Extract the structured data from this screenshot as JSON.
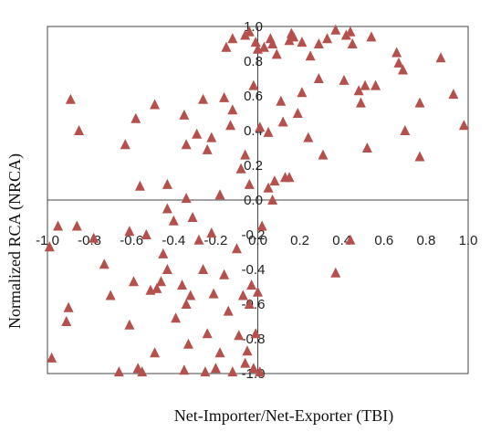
{
  "chart_data": {
    "type": "scatter",
    "title": "",
    "xlabel": "Net-Importer/Net-Exporter (TBI)",
    "ylabel": "Normalized RCA  (NRCA)",
    "xlim": [
      -1.0,
      1.0
    ],
    "ylim": [
      -1.0,
      1.0
    ],
    "x_ticks": [
      "-1.0",
      "-0.8",
      "-0.6",
      "-0.4",
      "-0.2",
      "0.0",
      "0.2",
      "0.4",
      "0.6",
      "0.8",
      "1.0"
    ],
    "y_ticks": [
      "1.0",
      "0.8",
      "0.6",
      "0.4",
      "0.2",
      "0.0",
      "-0.2",
      "-0.4",
      "-0.6",
      "-0.8",
      "-1.0"
    ],
    "grid": false,
    "marker": "triangle",
    "colors": {
      "marker": "#b5514c",
      "axis": "#444444"
    },
    "points": [
      {
        "x": -0.89,
        "y": 0.58
      },
      {
        "x": -0.85,
        "y": 0.4
      },
      {
        "x": -0.63,
        "y": 0.32
      },
      {
        "x": -0.58,
        "y": 0.47
      },
      {
        "x": -0.56,
        "y": 0.08
      },
      {
        "x": -0.49,
        "y": 0.55
      },
      {
        "x": -0.43,
        "y": 0.09
      },
      {
        "x": -0.43,
        "y": -0.05
      },
      {
        "x": -0.35,
        "y": 0.49
      },
      {
        "x": -0.34,
        "y": 0.32
      },
      {
        "x": -0.34,
        "y": 0.01
      },
      {
        "x": -0.29,
        "y": 0.38
      },
      {
        "x": -0.26,
        "y": 0.58
      },
      {
        "x": -0.24,
        "y": 0.29
      },
      {
        "x": -0.22,
        "y": 0.36
      },
      {
        "x": -0.18,
        "y": 0.03
      },
      {
        "x": -0.16,
        "y": 0.59
      },
      {
        "x": -0.13,
        "y": 0.43
      },
      {
        "x": -0.12,
        "y": 0.52
      },
      {
        "x": -0.08,
        "y": 0.18
      },
      {
        "x": -0.06,
        "y": 0.26
      },
      {
        "x": -0.04,
        "y": 0.09
      },
      {
        "x": -0.02,
        "y": 0.66
      },
      {
        "x": -0.15,
        "y": 0.88
      },
      {
        "x": -0.12,
        "y": 0.93
      },
      {
        "x": -0.06,
        "y": 0.95
      },
      {
        "x": -0.04,
        "y": 0.97
      },
      {
        "x": -0.01,
        "y": 0.91
      },
      {
        "x": 0.0,
        "y": 0.87
      },
      {
        "x": 0.03,
        "y": 0.88
      },
      {
        "x": 0.06,
        "y": 0.93
      },
      {
        "x": 0.07,
        "y": 0.9
      },
      {
        "x": 0.09,
        "y": 0.84
      },
      {
        "x": 0.15,
        "y": 0.92
      },
      {
        "x": 0.16,
        "y": 0.96
      },
      {
        "x": 0.17,
        "y": 0.94
      },
      {
        "x": 0.21,
        "y": 0.91
      },
      {
        "x": 0.25,
        "y": 0.83
      },
      {
        "x": 0.29,
        "y": 0.9
      },
      {
        "x": 0.33,
        "y": 0.93
      },
      {
        "x": 0.37,
        "y": 0.98
      },
      {
        "x": 0.42,
        "y": 0.95
      },
      {
        "x": 0.44,
        "y": 0.97
      },
      {
        "x": 0.45,
        "y": 0.9
      },
      {
        "x": 0.54,
        "y": 0.94
      },
      {
        "x": 0.01,
        "y": 0.42
      },
      {
        "x": 0.05,
        "y": 0.39
      },
      {
        "x": 0.11,
        "y": 0.57
      },
      {
        "x": 0.12,
        "y": 0.45
      },
      {
        "x": 0.19,
        "y": 0.5
      },
      {
        "x": 0.21,
        "y": 0.62
      },
      {
        "x": 0.24,
        "y": 0.36
      },
      {
        "x": 0.29,
        "y": 0.7
      },
      {
        "x": 0.31,
        "y": 0.26
      },
      {
        "x": 0.41,
        "y": 0.69
      },
      {
        "x": 0.48,
        "y": 0.63
      },
      {
        "x": 0.49,
        "y": 0.56
      },
      {
        "x": 0.51,
        "y": 0.66
      },
      {
        "x": 0.52,
        "y": 0.3
      },
      {
        "x": 0.56,
        "y": 0.66
      },
      {
        "x": 0.66,
        "y": 0.85
      },
      {
        "x": 0.67,
        "y": 0.79
      },
      {
        "x": 0.69,
        "y": 0.75
      },
      {
        "x": 0.7,
        "y": 0.4
      },
      {
        "x": 0.77,
        "y": 0.56
      },
      {
        "x": 0.77,
        "y": 0.25
      },
      {
        "x": 0.87,
        "y": 0.82
      },
      {
        "x": 0.93,
        "y": 0.61
      },
      {
        "x": 0.98,
        "y": 0.43
      },
      {
        "x": 0.05,
        "y": 0.07
      },
      {
        "x": 0.08,
        "y": 0.11
      },
      {
        "x": 0.07,
        "y": 0.0
      },
      {
        "x": 0.13,
        "y": 0.13
      },
      {
        "x": 0.15,
        "y": 0.13
      },
      {
        "x": -0.99,
        "y": -0.27
      },
      {
        "x": -0.98,
        "y": -0.91
      },
      {
        "x": -0.95,
        "y": -0.15
      },
      {
        "x": -0.91,
        "y": -0.7
      },
      {
        "x": -0.9,
        "y": -0.62
      },
      {
        "x": -0.86,
        "y": -0.15
      },
      {
        "x": -0.78,
        "y": -0.22
      },
      {
        "x": -0.73,
        "y": -0.37
      },
      {
        "x": -0.7,
        "y": -0.55
      },
      {
        "x": -0.66,
        "y": -0.99
      },
      {
        "x": -0.61,
        "y": -0.18
      },
      {
        "x": -0.61,
        "y": -0.72
      },
      {
        "x": -0.59,
        "y": -0.47
      },
      {
        "x": -0.57,
        "y": -0.97
      },
      {
        "x": -0.55,
        "y": -0.99
      },
      {
        "x": -0.53,
        "y": -0.2
      },
      {
        "x": -0.51,
        "y": -0.52
      },
      {
        "x": -0.49,
        "y": -0.88
      },
      {
        "x": -0.48,
        "y": -0.51
      },
      {
        "x": -0.46,
        "y": -0.47
      },
      {
        "x": -0.45,
        "y": -0.31
      },
      {
        "x": -0.43,
        "y": -0.4
      },
      {
        "x": -0.4,
        "y": -0.12
      },
      {
        "x": -0.39,
        "y": -0.68
      },
      {
        "x": -0.36,
        "y": -0.49
      },
      {
        "x": -0.35,
        "y": -0.98
      },
      {
        "x": -0.34,
        "y": -0.6
      },
      {
        "x": -0.33,
        "y": -0.83
      },
      {
        "x": -0.32,
        "y": -0.55
      },
      {
        "x": -0.31,
        "y": -0.1
      },
      {
        "x": -0.28,
        "y": -0.23
      },
      {
        "x": -0.26,
        "y": -0.4
      },
      {
        "x": -0.25,
        "y": -0.99
      },
      {
        "x": -0.24,
        "y": -0.77
      },
      {
        "x": -0.22,
        "y": -0.19
      },
      {
        "x": -0.21,
        "y": -0.54
      },
      {
        "x": -0.2,
        "y": -0.97
      },
      {
        "x": -0.18,
        "y": -0.88
      },
      {
        "x": -0.16,
        "y": -0.43
      },
      {
        "x": -0.14,
        "y": -0.64
      },
      {
        "x": -0.12,
        "y": -0.99
      },
      {
        "x": -0.1,
        "y": -0.28
      },
      {
        "x": -0.09,
        "y": -0.78
      },
      {
        "x": -0.07,
        "y": -0.55
      },
      {
        "x": -0.06,
        "y": -0.94
      },
      {
        "x": -0.05,
        "y": -0.87
      },
      {
        "x": -0.04,
        "y": -0.6
      },
      {
        "x": -0.03,
        "y": -0.49
      },
      {
        "x": -0.02,
        "y": -0.97
      },
      {
        "x": -0.01,
        "y": -0.77
      },
      {
        "x": 0.0,
        "y": -0.53
      },
      {
        "x": 0.01,
        "y": -0.99
      },
      {
        "x": 0.02,
        "y": -0.15
      },
      {
        "x": 0.37,
        "y": -0.42
      },
      {
        "x": 0.44,
        "y": -0.23
      }
    ]
  }
}
